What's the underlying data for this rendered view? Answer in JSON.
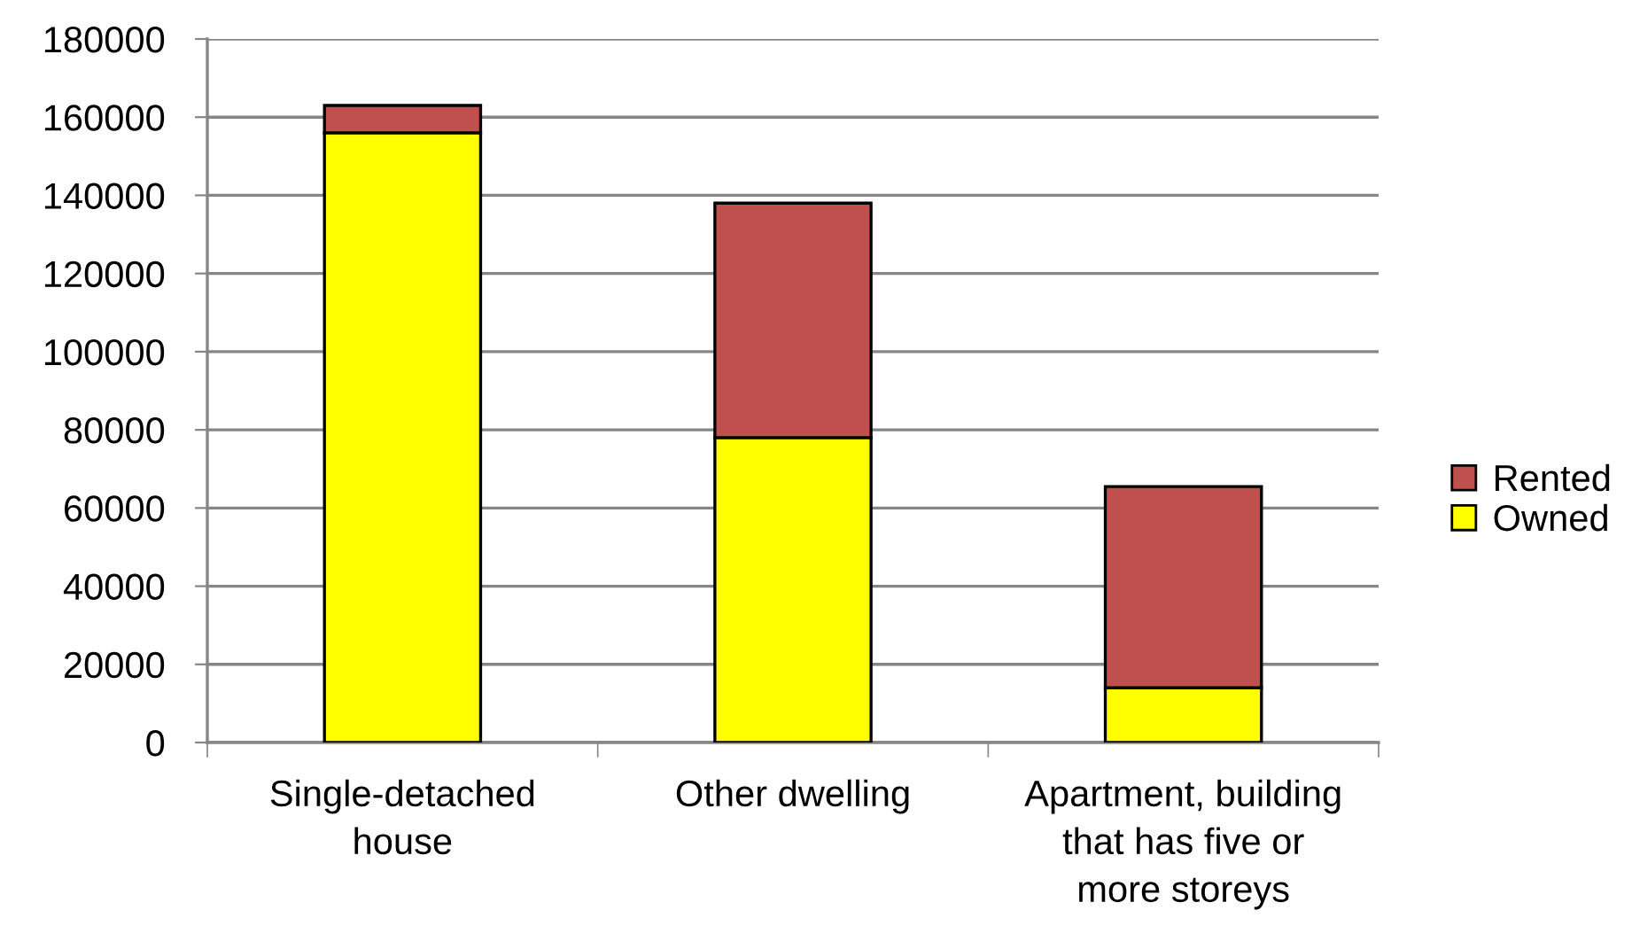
{
  "chart_data": {
    "type": "bar",
    "stacked": true,
    "categories": [
      "Single-detached\nhouse",
      "Other dwelling",
      "Apartment, building\nthat has five or\nmore storeys"
    ],
    "series": [
      {
        "name": "Owned",
        "color": "#ffff00",
        "values": [
          156000,
          78000,
          14000
        ]
      },
      {
        "name": "Rented",
        "color": "#c0504d",
        "values": [
          7000,
          60000,
          51500
        ]
      }
    ],
    "ylim": [
      0,
      180000
    ],
    "yticks": [
      0,
      20000,
      40000,
      60000,
      80000,
      100000,
      120000,
      140000,
      160000,
      180000
    ],
    "grid": "y",
    "legend": "right"
  }
}
